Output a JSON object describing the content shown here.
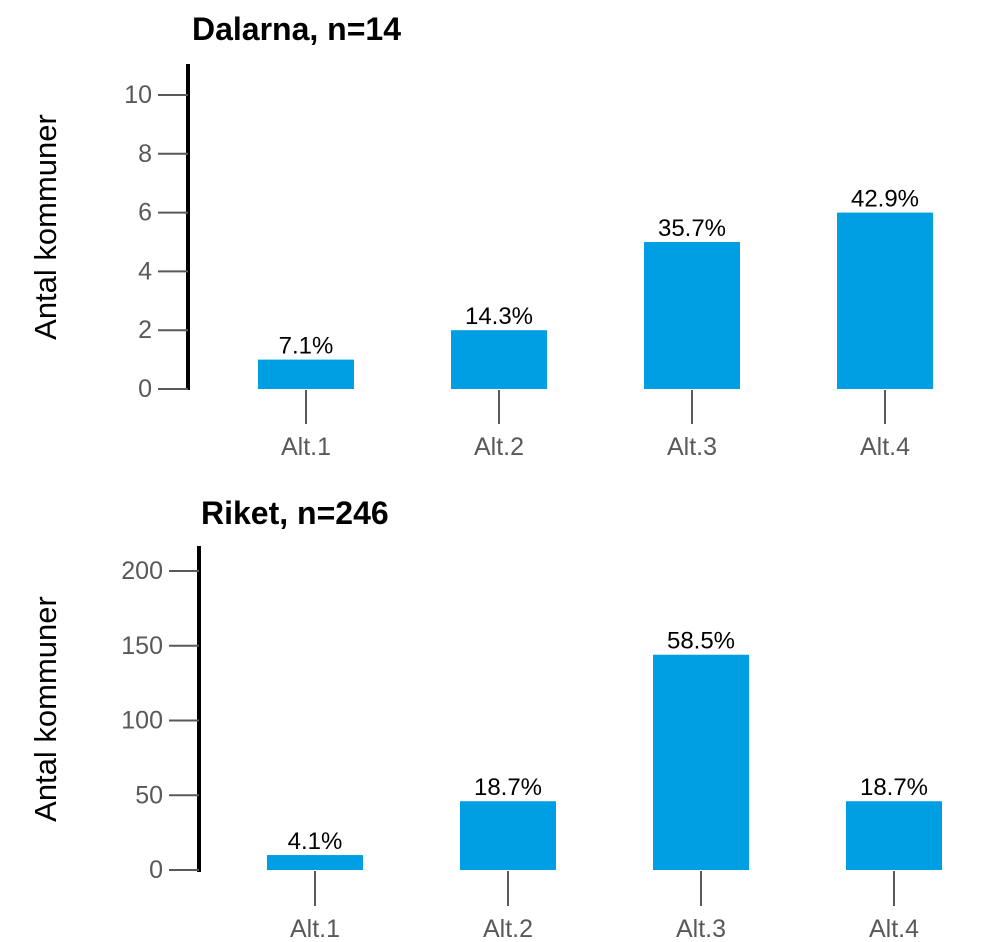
{
  "colors": {
    "bar": "#009FE3",
    "axis": "#000000",
    "tick": "#595959",
    "text": "#000000"
  },
  "chart_data": [
    {
      "type": "bar",
      "title": "Dalarna, n=14",
      "ylabel": "Antal kommuner",
      "xlabel": "",
      "categories": [
        "Alt.1",
        "Alt.2",
        "Alt.3",
        "Alt.4"
      ],
      "values": [
        1,
        2,
        5,
        6
      ],
      "data_labels": [
        "7.1%",
        "14.3%",
        "35.7%",
        "42.9%"
      ],
      "ylim": [
        0,
        10
      ],
      "yticks": [
        0,
        2,
        4,
        6,
        8,
        10
      ],
      "ytick_labels": [
        "0",
        "2",
        "4",
        "6",
        "8",
        "10"
      ],
      "grid": false,
      "legend": "none"
    },
    {
      "type": "bar",
      "title": "Riket, n=246",
      "ylabel": "Antal kommuner",
      "xlabel": "",
      "categories": [
        "Alt.1",
        "Alt.2",
        "Alt.3",
        "Alt.4"
      ],
      "values": [
        10,
        46,
        144,
        46
      ],
      "data_labels": [
        "4.1%",
        "18.7%",
        "58.5%",
        "18.7%"
      ],
      "ylim": [
        0,
        200
      ],
      "yticks": [
        0,
        50,
        100,
        150,
        200
      ],
      "ytick_labels": [
        "0",
        "50",
        "100",
        "150",
        "200"
      ],
      "grid": false,
      "legend": "none"
    }
  ]
}
